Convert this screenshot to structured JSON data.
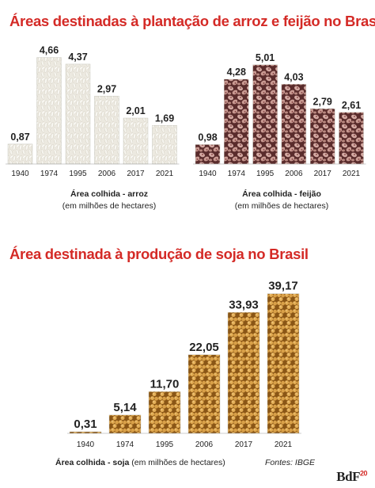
{
  "header": {
    "title_top": "Áreas destinadas à plantação de arroz e feijão no Brasil",
    "title_soy": "Área destinada à produção de soja no Brasil"
  },
  "captions": {
    "rice_main": "Área colhida - arroz",
    "rice_unit": "(em milhões de hectares)",
    "bean_main": "Área colhida - feijão",
    "bean_unit": "(em milhões de hectares)",
    "soy_main": "Área colhida - soja",
    "soy_unit": " (em milhões de hectares)",
    "source": "Fontes: IBGE"
  },
  "logo": {
    "text": "BdF",
    "sup": "20"
  },
  "colors": {
    "title": "#d42a26",
    "rice": "#e9e6dc",
    "bean": "#c79a93",
    "soy": "#d9a24a"
  },
  "chart_data": [
    {
      "type": "bar",
      "name": "rice",
      "categories": [
        "1940",
        "1974",
        "1995",
        "2006",
        "2017",
        "2021"
      ],
      "values": [
        0.87,
        4.66,
        4.37,
        2.97,
        2.01,
        1.69
      ],
      "value_labels": [
        "0,87",
        "4,66",
        "4,37",
        "2,97",
        "2,01",
        "1,69"
      ],
      "xlabel": "Área colhida - arroz",
      "ylabel": "(em milhões de hectares)"
    },
    {
      "type": "bar",
      "name": "bean",
      "categories": [
        "1940",
        "1974",
        "1995",
        "2006",
        "2017",
        "2021"
      ],
      "values": [
        0.98,
        4.28,
        5.01,
        4.03,
        2.79,
        2.61
      ],
      "value_labels": [
        "0,98",
        "4,28",
        "5,01",
        "4,03",
        "2,79",
        "2,61"
      ],
      "xlabel": "Área colhida - feijão",
      "ylabel": "(em milhões de hectares)"
    },
    {
      "type": "bar",
      "name": "soy",
      "categories": [
        "1940",
        "1974",
        "1995",
        "2006",
        "2017",
        "2021"
      ],
      "values": [
        0.31,
        5.14,
        11.7,
        22.05,
        33.93,
        39.17
      ],
      "value_labels": [
        "0,31",
        "5,14",
        "11,70",
        "22,05",
        "33,93",
        "39,17"
      ],
      "xlabel": "Área colhida - soja (em milhões de hectares)"
    }
  ]
}
